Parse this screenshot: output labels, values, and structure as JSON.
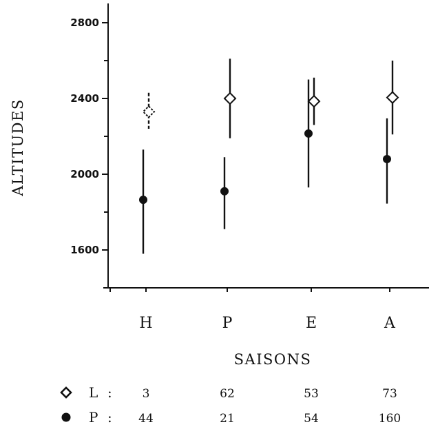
{
  "chart_data": {
    "type": "scatter",
    "categories": [
      "H",
      "P",
      "E",
      "A"
    ],
    "xlabel": "SAISONS",
    "ylabel": "ALTITUDES",
    "yticks": [
      1600,
      2000,
      2400,
      2800
    ],
    "ylim": [
      1400,
      2950
    ],
    "grid": false,
    "series": [
      {
        "name": "L",
        "marker": "open-diamond",
        "values": [
          2330,
          2400,
          2385,
          2405
        ],
        "low": [
          2240,
          2190,
          2260,
          2210
        ],
        "high": [
          2430,
          2610,
          2510,
          2600
        ],
        "dashed": [
          true,
          false,
          false,
          false
        ],
        "counts": [
          "3",
          "62",
          "53",
          "73"
        ]
      },
      {
        "name": "P",
        "marker": "filled-circle",
        "values": [
          1865,
          1910,
          2215,
          2080
        ],
        "low": [
          1580,
          1710,
          1930,
          1845
        ],
        "high": [
          2130,
          2090,
          2500,
          2295
        ],
        "dashed": [
          false,
          false,
          false,
          false
        ],
        "counts": [
          "44",
          "21",
          "54",
          "160"
        ]
      }
    ]
  },
  "legend": {
    "separator": ":",
    "items": [
      {
        "label": "L",
        "symbol": "open-diamond"
      },
      {
        "label": "P",
        "symbol": "filled-circle"
      }
    ]
  }
}
